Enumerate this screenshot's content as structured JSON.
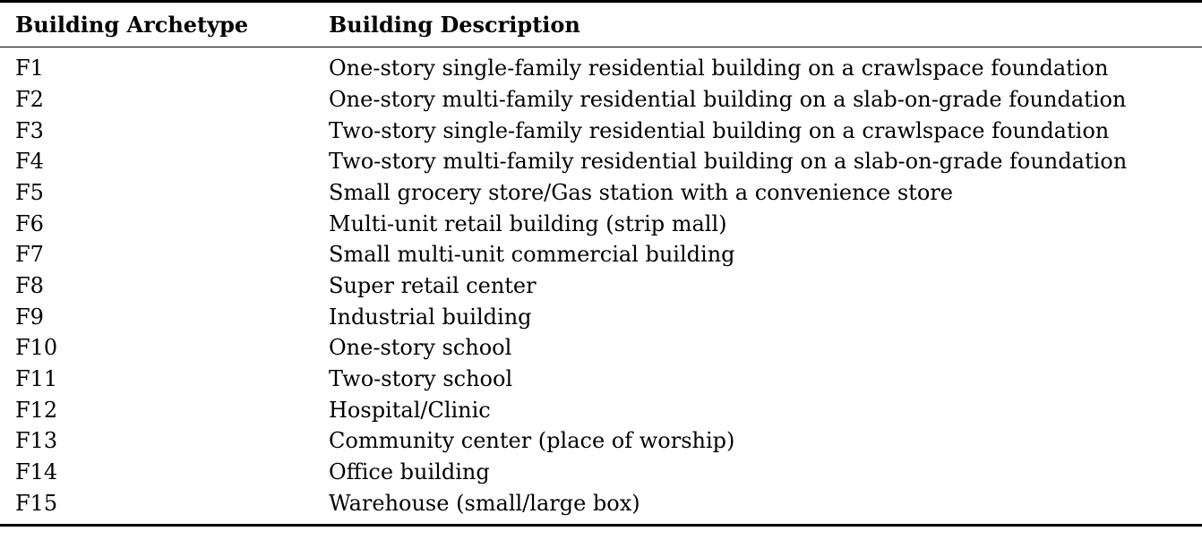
{
  "table": {
    "headers": [
      "Building Archetype",
      "Building Description"
    ],
    "rows": [
      [
        "F1",
        "One-story single-family residential building on a crawlspace foundation"
      ],
      [
        "F2",
        "One-story multi-family residential building on a slab-on-grade foundation"
      ],
      [
        "F3",
        "Two-story single-family residential building on a crawlspace foundation"
      ],
      [
        "F4",
        "Two-story multi-family residential building on a slab-on-grade foundation"
      ],
      [
        "F5",
        "Small grocery store/Gas station with a convenience store"
      ],
      [
        "F6",
        "Multi-unit retail building (strip mall)"
      ],
      [
        "F7",
        "Small multi-unit commercial building"
      ],
      [
        "F8",
        "Super retail center"
      ],
      [
        "F9",
        "Industrial building"
      ],
      [
        "F10",
        "One-story school"
      ],
      [
        "F11",
        "Two-story school"
      ],
      [
        "F12",
        "Hospital/Clinic"
      ],
      [
        "F13",
        "Community center (place of worship)"
      ],
      [
        "F14",
        "Office building"
      ],
      [
        "F15",
        "Warehouse (small/large box)"
      ]
    ]
  }
}
